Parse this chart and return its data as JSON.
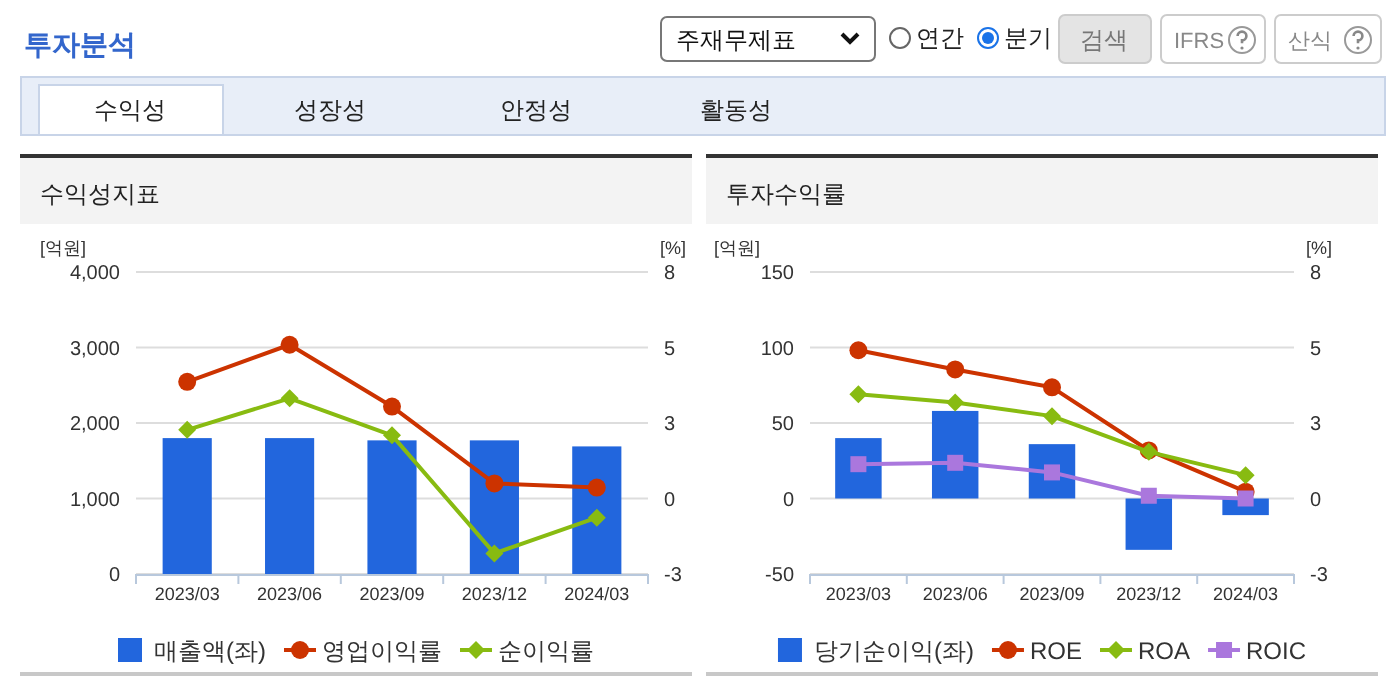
{
  "chart_data": [
    {
      "type": "other",
      "title": "투자분석",
      "annotations": [
        "주재무제표",
        "연간",
        "분기",
        "검색",
        "IFRS",
        "산식",
        "수익성",
        "성장성",
        "안정성",
        "활동성"
      ]
    },
    {
      "type": "bar",
      "title": "수익성지표",
      "ylabel": "[억원]",
      "y2label": "[%]",
      "categories": [
        "2023/03",
        "2023/06",
        "2023/09",
        "2023/12",
        "2024/03"
      ],
      "ylim": [
        0,
        4000
      ],
      "yticks": [
        0,
        {
          "value": 1000,
          "label": "1,000"
        },
        {
          "value": 2000,
          "label": "2,000"
        },
        {
          "value": 3000,
          "label": "3,000"
        },
        {
          "value": 4000,
          "label": "4,000"
        }
      ],
      "y2lim": [
        -3,
        8
      ],
      "y2ticks": [
        {
          "value": -3,
          "label": "-3"
        },
        {
          "value": -0.25,
          "label": "0"
        },
        {
          "value": 2.5,
          "label": "3"
        },
        {
          "value": 5.25,
          "label": "5"
        },
        {
          "value": 8,
          "label": "8"
        }
      ],
      "grid": "y",
      "legend": "bottom",
      "series": [
        {
          "name": "매출액(좌)",
          "type": "bar",
          "color": "#2266dd",
          "values": [
            1800,
            1800,
            1770,
            1770,
            1690
          ]
        },
        {
          "name": "영업이익률",
          "type": "line",
          "axis": "y2",
          "marker": "circle",
          "color": "#cc3300",
          "values": [
            4.0,
            5.35,
            3.1,
            0.3,
            0.15
          ]
        },
        {
          "name": "순이익률",
          "type": "line",
          "axis": "y2",
          "marker": "diamond",
          "color": "#88bb11",
          "values": [
            2.25,
            3.4,
            2.05,
            -2.25,
            -0.95
          ]
        }
      ]
    },
    {
      "type": "bar",
      "title": "투자수익률",
      "ylabel": "[억원]",
      "y2label": "[%]",
      "categories": [
        "2023/03",
        "2023/06",
        "2023/09",
        "2023/12",
        "2024/03"
      ],
      "ylim": [
        -50,
        150
      ],
      "yticks": [
        -50,
        0,
        50,
        100,
        150
      ],
      "y2lim": [
        -3,
        8
      ],
      "y2ticks": [
        {
          "value": -3,
          "label": "-3"
        },
        {
          "value": -0.25,
          "label": "0"
        },
        {
          "value": 2.5,
          "label": "3"
        },
        {
          "value": 5.25,
          "label": "5"
        },
        {
          "value": 8,
          "label": "8"
        }
      ],
      "grid": "y",
      "legend": "bottom",
      "series": [
        {
          "name": "당기순이익(좌)",
          "type": "bar",
          "color": "#2266dd",
          "values": [
            40,
            58,
            36,
            -34,
            -11
          ]
        },
        {
          "name": "ROE",
          "type": "line",
          "axis": "y2",
          "marker": "circle",
          "color": "#cc3300",
          "values": [
            5.15,
            4.45,
            3.8,
            1.5,
            0.0
          ]
        },
        {
          "name": "ROA",
          "type": "line",
          "axis": "y2",
          "marker": "diamond",
          "color": "#88bb11",
          "values": [
            3.55,
            3.25,
            2.75,
            1.45,
            0.6
          ]
        },
        {
          "name": "ROIC",
          "type": "line",
          "axis": "y2",
          "marker": "square",
          "color": "#aa77dd",
          "values": [
            1.0,
            1.05,
            0.7,
            -0.15,
            -0.25
          ]
        }
      ]
    }
  ]
}
